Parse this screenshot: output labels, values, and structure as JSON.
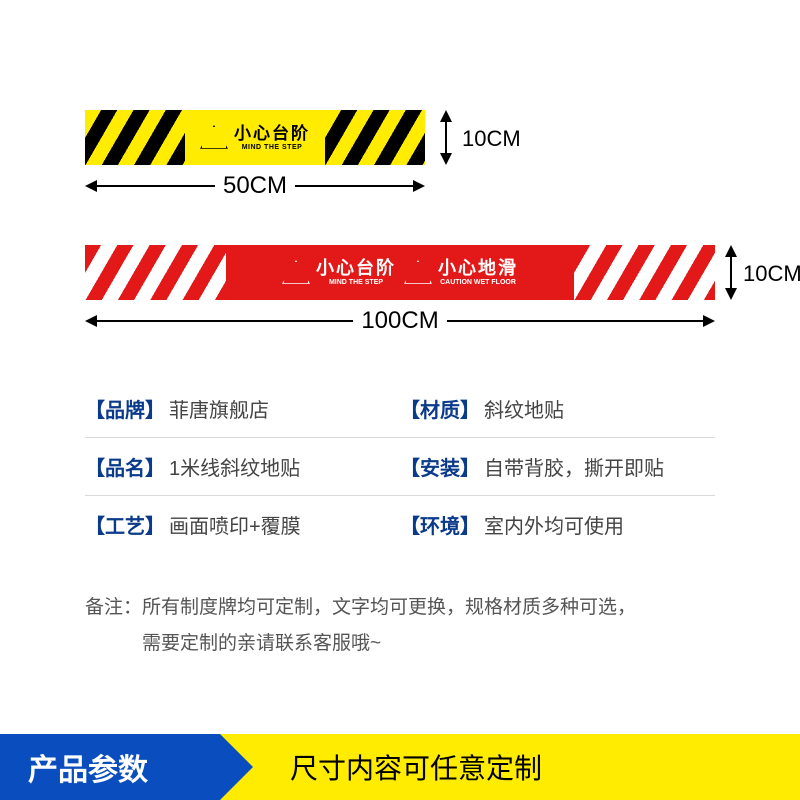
{
  "colors": {
    "yellow": "#ffec00",
    "black": "#000000",
    "red": "#e31818",
    "white": "#ffffff",
    "blue_key": "#0a3a8a",
    "footer_blue": "#0a4dbf",
    "text_gray": "#444444",
    "note_gray": "#555555",
    "divider": "#d9d9d9"
  },
  "yellow_tape": {
    "warning_cn": "小心台阶",
    "warning_en": "MIND THE STEP",
    "width_label": "50CM",
    "height_label": "10CM"
  },
  "red_tape": {
    "warning1_cn": "小心台阶",
    "warning1_en": "MIND THE STEP",
    "warning2_cn": "小心地滑",
    "warning2_en": "CAUTION WET FLOOR",
    "width_label": "100CM",
    "height_label": "10CM"
  },
  "specs": [
    {
      "k1": "【品牌】",
      "v1": "菲唐旗舰店",
      "k2": "【材质】",
      "v2": "斜纹地贴"
    },
    {
      "k1": "【品名】",
      "v1": "1米线斜纹地贴",
      "k2": "【安装】",
      "v2": "自带背胶，撕开即贴"
    },
    {
      "k1": "【工艺】",
      "v1": "画面喷印+覆膜",
      "k2": "【环境】",
      "v2": "室内外均可使用"
    }
  ],
  "note_prefix": "备注：",
  "note_line1": "所有制度牌均可定制，文字均可更换，规格材质多种可选，",
  "note_line2": "需要定制的亲请联系客服哦~",
  "footer": {
    "left": "产品参数",
    "right": "尺寸内容可任意定制"
  }
}
